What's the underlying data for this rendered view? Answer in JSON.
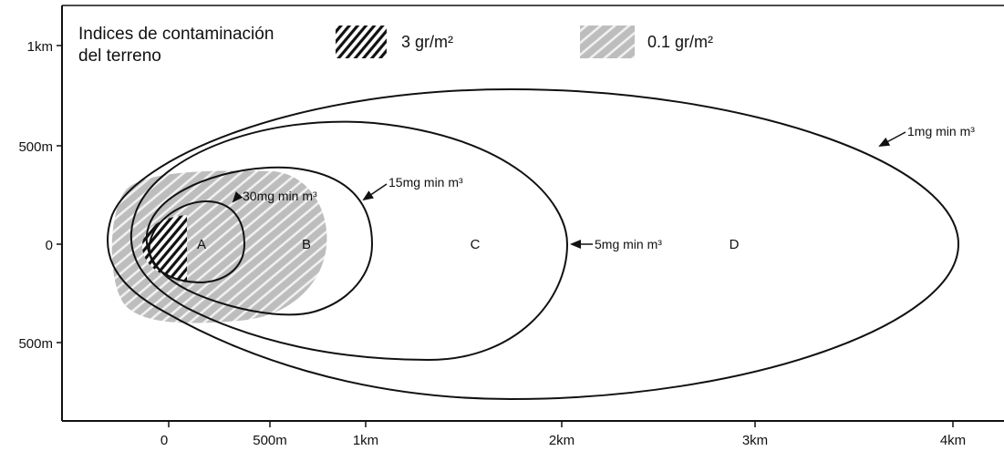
{
  "legend": {
    "title_line1": "Indices de contaminación",
    "title_line2": "del terreno",
    "high_label": "3 gr/m²",
    "low_label": "0.1 gr/m²"
  },
  "y_ticks": [
    {
      "label": "1km",
      "value": 1000
    },
    {
      "label": "500m",
      "value": 500
    },
    {
      "label": "0",
      "value": 0
    },
    {
      "label": "500m",
      "value": -500
    }
  ],
  "x_ticks": [
    {
      "label": "0",
      "value": 0
    },
    {
      "label": "500m",
      "value": 500
    },
    {
      "label": "1km",
      "value": 1000
    },
    {
      "label": "2km",
      "value": 2000
    },
    {
      "label": "3km",
      "value": 3000
    },
    {
      "label": "4km",
      "value": 4000
    }
  ],
  "contours": {
    "c30": "30mg min m³",
    "c15": "15mg min m³",
    "c5": "5mg min m³",
    "c1": "1mg min m³"
  },
  "zones": [
    "A",
    "B",
    "C",
    "D"
  ],
  "colors": {
    "line": "#111111",
    "shade": "#bdbdbd"
  }
}
